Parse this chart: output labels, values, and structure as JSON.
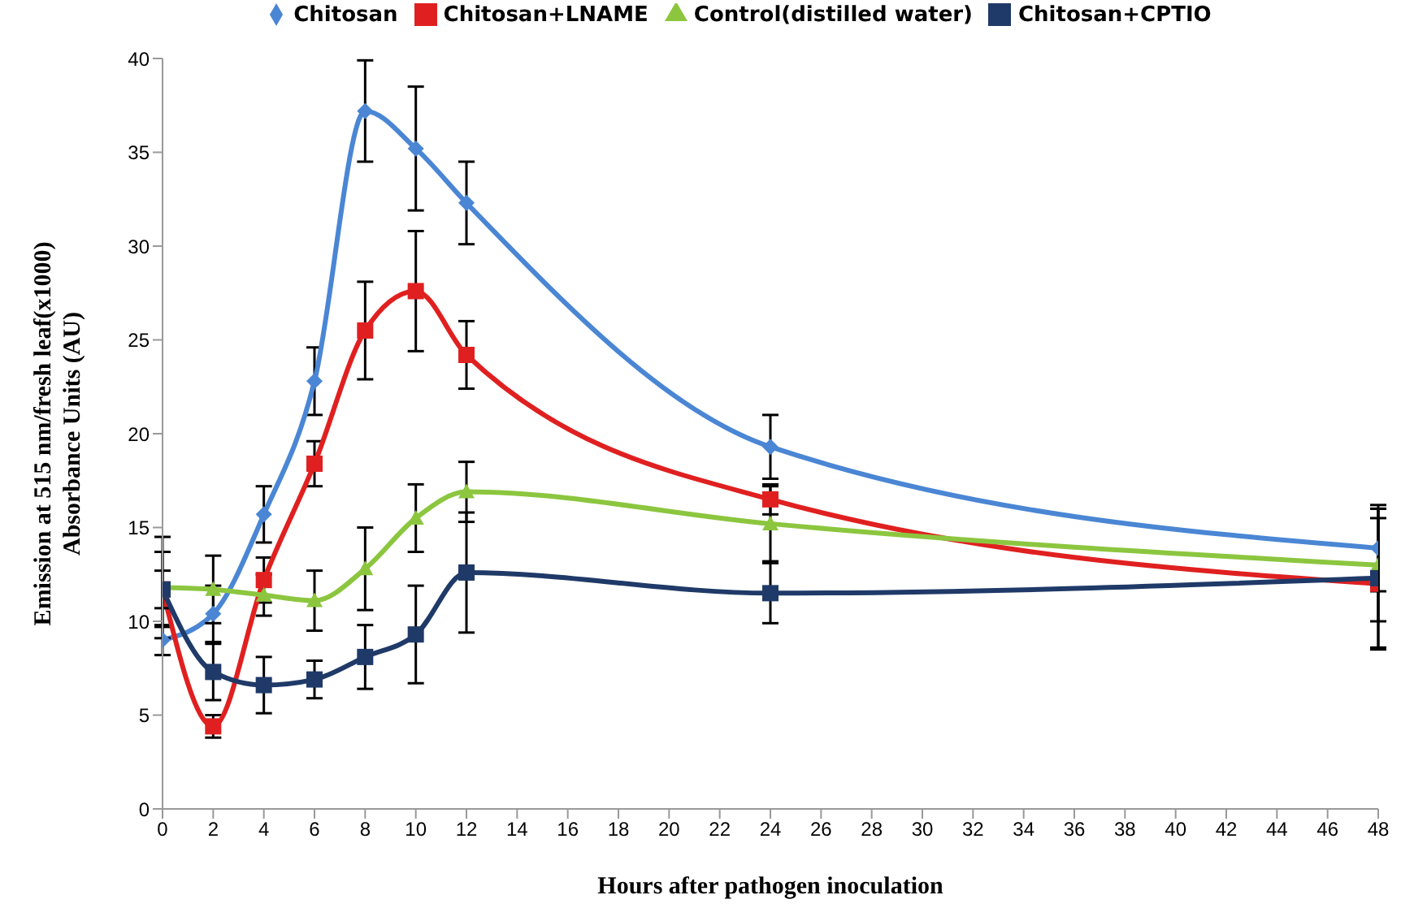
{
  "chart_data": {
    "type": "line",
    "xlabel": "Hours after pathogen inoculation",
    "ylabel": "Emission at 515 nm/fresh leaf(x1000)\nAbsorbance Units (AU)",
    "x": [
      0,
      2,
      4,
      6,
      8,
      10,
      12,
      24,
      48
    ],
    "series": [
      {
        "name": "Chitosan",
        "color": "#4a86d4",
        "marker": "diamond",
        "values": [
          9.0,
          10.4,
          15.7,
          22.8,
          37.2,
          35.2,
          32.3,
          19.3,
          13.9
        ],
        "errors": [
          0.8,
          1.5,
          1.5,
          1.8,
          2.7,
          3.3,
          2.2,
          1.7,
          2.3
        ]
      },
      {
        "name": "Chitosan+LNAME",
        "color": "#e02020",
        "marker": "square",
        "values": [
          11.7,
          4.4,
          12.2,
          18.4,
          25.5,
          27.6,
          24.2,
          16.5,
          12.0
        ],
        "errors": [
          2.0,
          0.6,
          1.2,
          1.2,
          2.6,
          3.2,
          1.8,
          0.8,
          3.5
        ]
      },
      {
        "name": "Control(distilled water)",
        "color": "#8cc63f",
        "marker": "triangle",
        "values": [
          11.8,
          11.7,
          11.4,
          11.1,
          12.8,
          15.5,
          16.9,
          15.2,
          13.0
        ],
        "errors": [
          2.7,
          1.8,
          1.1,
          1.6,
          2.2,
          1.8,
          1.6,
          2.0,
          3.0
        ]
      },
      {
        "name": "Chitosan+CPTIO",
        "color": "#1f3a68",
        "marker": "square",
        "values": [
          11.7,
          7.3,
          6.6,
          6.9,
          8.1,
          9.3,
          12.6,
          11.5,
          12.3
        ],
        "errors": [
          1.0,
          1.5,
          1.5,
          1.0,
          1.7,
          2.6,
          3.2,
          1.6,
          3.7
        ]
      }
    ],
    "xlim": [
      0,
      48
    ],
    "xticks": [
      0,
      2,
      4,
      6,
      8,
      10,
      12,
      14,
      16,
      18,
      20,
      22,
      24,
      26,
      28,
      30,
      32,
      34,
      36,
      38,
      40,
      42,
      44,
      46,
      48
    ],
    "ylim": [
      0,
      40
    ],
    "yticks": [
      0,
      5,
      10,
      15,
      20,
      25,
      30,
      35,
      40
    ],
    "grid": false,
    "legend": "top",
    "line_style": "solid"
  }
}
